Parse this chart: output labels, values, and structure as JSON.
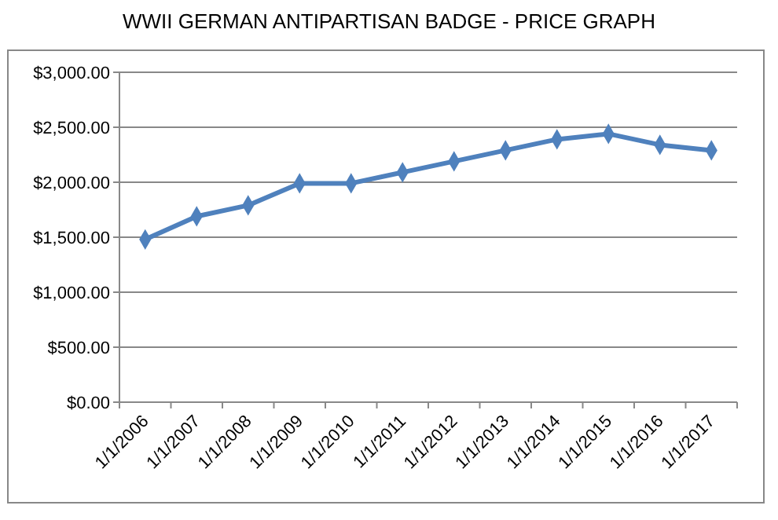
{
  "chart_data": {
    "type": "line",
    "title": "WWII GERMAN ANTIPARTISAN BADGE - PRICE GRAPH",
    "categories": [
      "1/1/2006",
      "1/1/2007",
      "1/1/2008",
      "1/1/2009",
      "1/1/2010",
      "1/1/2011",
      "1/1/2012",
      "1/1/2013",
      "1/1/2014",
      "1/1/2015",
      "1/1/2016",
      "1/1/2017"
    ],
    "series": [
      {
        "color": "#4f81bd",
        "values": [
          1480,
          1690,
          1790,
          1990,
          1990,
          2090,
          2190,
          2290,
          2390,
          2440,
          2340,
          2290
        ]
      }
    ],
    "ylim": [
      0,
      3000
    ],
    "yticks": [
      {
        "value": 0,
        "label": "$0.00"
      },
      {
        "value": 500,
        "label": "$500.00"
      },
      {
        "value": 1000,
        "label": "$1,000.00"
      },
      {
        "value": 1500,
        "label": "$1,500.00"
      },
      {
        "value": 2000,
        "label": "$2,000.00"
      },
      {
        "value": 2500,
        "label": "$2,500.00"
      },
      {
        "value": 3000,
        "label": "$3,000.00"
      }
    ],
    "grid": "y",
    "marker": "diamond",
    "line_style": "solid"
  }
}
